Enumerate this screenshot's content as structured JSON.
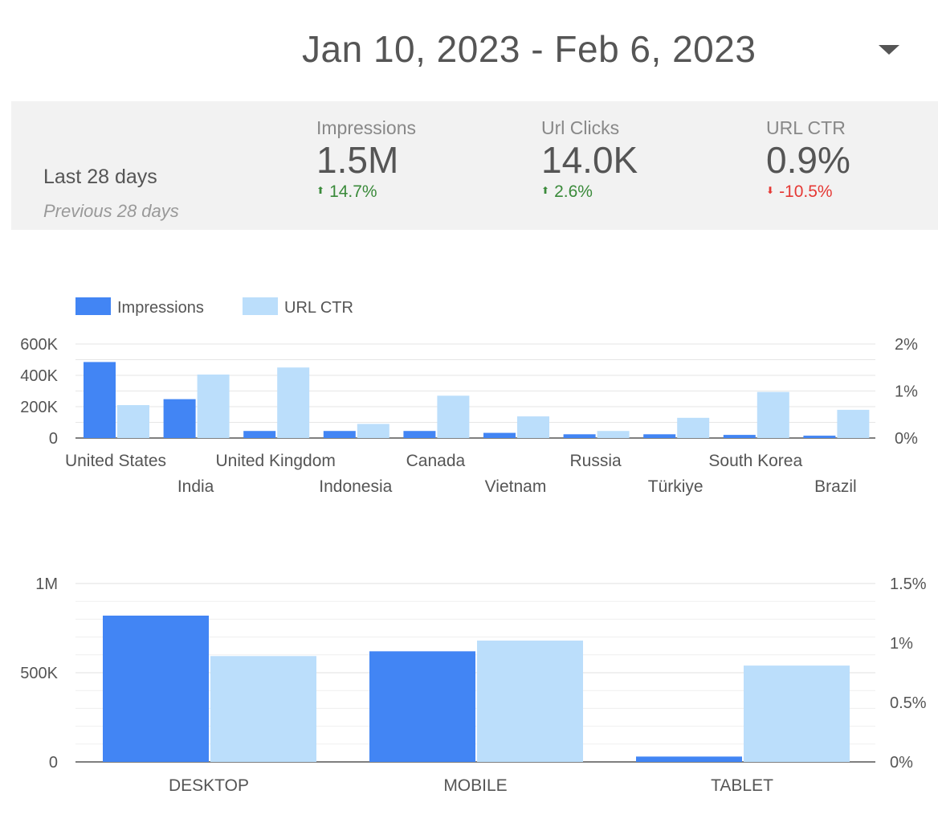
{
  "header": {
    "date_range": "Jan 10, 2023 - Feb 6, 2023",
    "dropdown_icon": "chevron-down-icon"
  },
  "scorecard": {
    "period_current": "Last 28 days",
    "period_previous": "Previous 28 days",
    "metrics": [
      {
        "label": "Impressions",
        "value": "1.5M",
        "change": "14.7%",
        "direction": "up"
      },
      {
        "label": "Url Clicks",
        "value": "14.0K",
        "change": "2.6%",
        "direction": "up"
      },
      {
        "label": "URL CTR",
        "value": "0.9%",
        "change": "-10.5%",
        "direction": "down"
      }
    ]
  },
  "colors": {
    "impressions": "#4285f4",
    "url_ctr": "#bbdefb",
    "up": "#3a8a3a",
    "down": "#e53935",
    "grid": "#e6e6e6",
    "axis_text": "#555555"
  },
  "chart_data": [
    {
      "type": "bar",
      "categories": [
        "United States",
        "India",
        "United Kingdom",
        "Indonesia",
        "Canada",
        "Vietnam",
        "Russia",
        "Türkiye",
        "South Korea",
        "Brazil"
      ],
      "series": [
        {
          "name": "Impressions",
          "axis": "left",
          "values": [
            485000,
            248000,
            45000,
            45000,
            45000,
            33000,
            24000,
            24000,
            20000,
            15000
          ]
        },
        {
          "name": "URL CTR",
          "axis": "right",
          "values": [
            0.7,
            1.35,
            1.5,
            0.3,
            0.9,
            0.46,
            0.15,
            0.43,
            0.98,
            0.6
          ]
        }
      ],
      "legend": "top-left",
      "ylim_left": [
        0,
        600000
      ],
      "ylim_right": [
        0,
        2
      ],
      "left_ticks": [
        "0",
        "200K",
        "400K",
        "600K"
      ],
      "right_ticks": [
        "0%",
        "1%",
        "2%"
      ],
      "grid": true
    },
    {
      "type": "bar",
      "categories": [
        "DESKTOP",
        "MOBILE",
        "TABLET"
      ],
      "series": [
        {
          "name": "Impressions",
          "axis": "left",
          "values": [
            820000,
            620000,
            30000
          ]
        },
        {
          "name": "URL CTR",
          "axis": "right",
          "values": [
            0.89,
            1.02,
            0.81
          ]
        }
      ],
      "ylim_left": [
        0,
        1000000
      ],
      "ylim_right": [
        0,
        1.5
      ],
      "left_ticks": [
        "0",
        "500K",
        "1M"
      ],
      "right_ticks": [
        "0%",
        "0.5%",
        "1%",
        "1.5%"
      ],
      "grid": true
    }
  ]
}
